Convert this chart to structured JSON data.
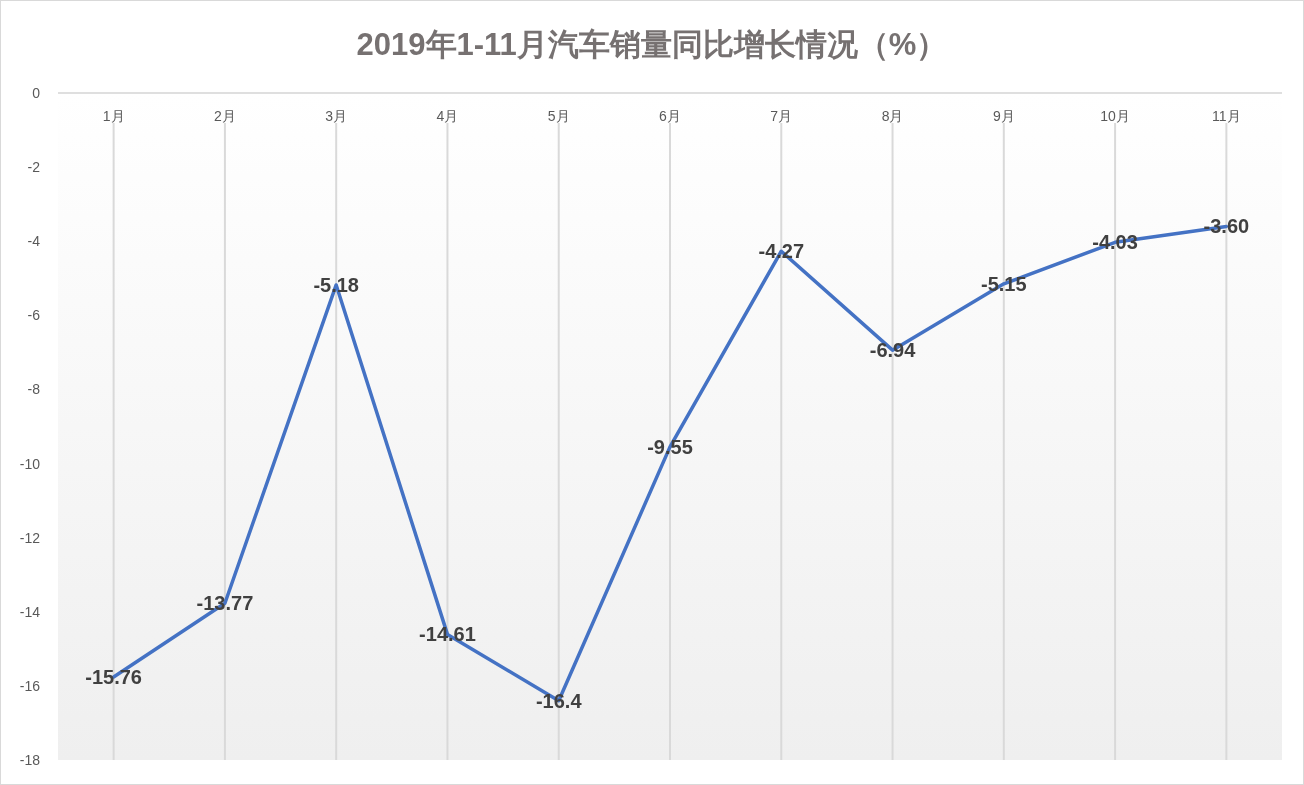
{
  "chart_data": {
    "type": "line",
    "title": "2019年1-11月汽车销量同比增长情况（%）",
    "categories": [
      "1月",
      "2月",
      "3月",
      "4月",
      "5月",
      "6月",
      "7月",
      "8月",
      "9月",
      "10月",
      "11月"
    ],
    "values": [
      -15.76,
      -13.77,
      -5.18,
      -14.61,
      -16.4,
      -9.55,
      -4.27,
      -6.94,
      -5.15,
      -4.03,
      -3.6
    ],
    "value_labels": [
      "-15.76",
      "-13.77",
      "-5.18",
      "-14.61",
      "-16.4",
      "-9.55",
      "-4.27",
      "-6.94",
      "-5.15",
      "-4.03",
      "-3.60"
    ],
    "color": "#4472c4",
    "ylim": [
      -18,
      0
    ],
    "yticks": [
      0,
      -2,
      -4,
      -6,
      -8,
      -10,
      -12,
      -14,
      -16,
      -18
    ],
    "grid": "x"
  }
}
